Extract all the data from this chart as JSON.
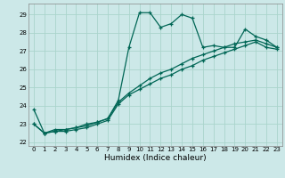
{
  "title": "",
  "xlabel": "Humidex (Indice chaleur)",
  "ylabel": "",
  "bg_color": "#cce8e8",
  "grid_color": "#aad4cc",
  "line_color": "#006655",
  "xlim": [
    -0.5,
    23.5
  ],
  "ylim": [
    21.8,
    29.6
  ],
  "xticks": [
    0,
    1,
    2,
    3,
    4,
    5,
    6,
    7,
    8,
    9,
    10,
    11,
    12,
    13,
    14,
    15,
    16,
    17,
    18,
    19,
    20,
    21,
    22,
    23
  ],
  "yticks": [
    22,
    23,
    24,
    25,
    26,
    27,
    28,
    29
  ],
  "series1_x": [
    0,
    1,
    2,
    3,
    4,
    5,
    6,
    7,
    8,
    9,
    10,
    11,
    12,
    13,
    14,
    15,
    16,
    17,
    18,
    19,
    20,
    21,
    22,
    23
  ],
  "series1_y": [
    23.8,
    22.5,
    22.7,
    22.7,
    22.8,
    23.0,
    23.1,
    23.3,
    24.3,
    27.2,
    29.1,
    29.1,
    28.3,
    28.5,
    29.0,
    28.8,
    27.2,
    27.3,
    27.2,
    27.2,
    28.2,
    27.8,
    27.6,
    27.2
  ],
  "series2_x": [
    0,
    1,
    2,
    3,
    4,
    5,
    6,
    7,
    8,
    9,
    10,
    11,
    12,
    13,
    14,
    15,
    16,
    17,
    18,
    19,
    20,
    21,
    22,
    23
  ],
  "series2_y": [
    23.0,
    22.5,
    22.6,
    22.6,
    22.7,
    22.8,
    23.0,
    23.2,
    24.1,
    24.6,
    24.9,
    25.2,
    25.5,
    25.7,
    26.0,
    26.2,
    26.5,
    26.7,
    26.9,
    27.1,
    27.3,
    27.5,
    27.2,
    27.1
  ],
  "series3_x": [
    0,
    1,
    2,
    3,
    4,
    5,
    6,
    7,
    8,
    9,
    10,
    11,
    12,
    13,
    14,
    15,
    16,
    17,
    18,
    19,
    20,
    21,
    22,
    23
  ],
  "series3_y": [
    23.0,
    22.5,
    22.6,
    22.7,
    22.8,
    22.9,
    23.1,
    23.3,
    24.2,
    24.7,
    25.1,
    25.5,
    25.8,
    26.0,
    26.3,
    26.6,
    26.8,
    27.0,
    27.2,
    27.4,
    27.5,
    27.6,
    27.4,
    27.2
  ],
  "xlabel_fontsize": 6.5,
  "tick_fontsize": 5.0,
  "linewidth": 0.9,
  "markersize": 3.5,
  "markeredgewidth": 0.9
}
